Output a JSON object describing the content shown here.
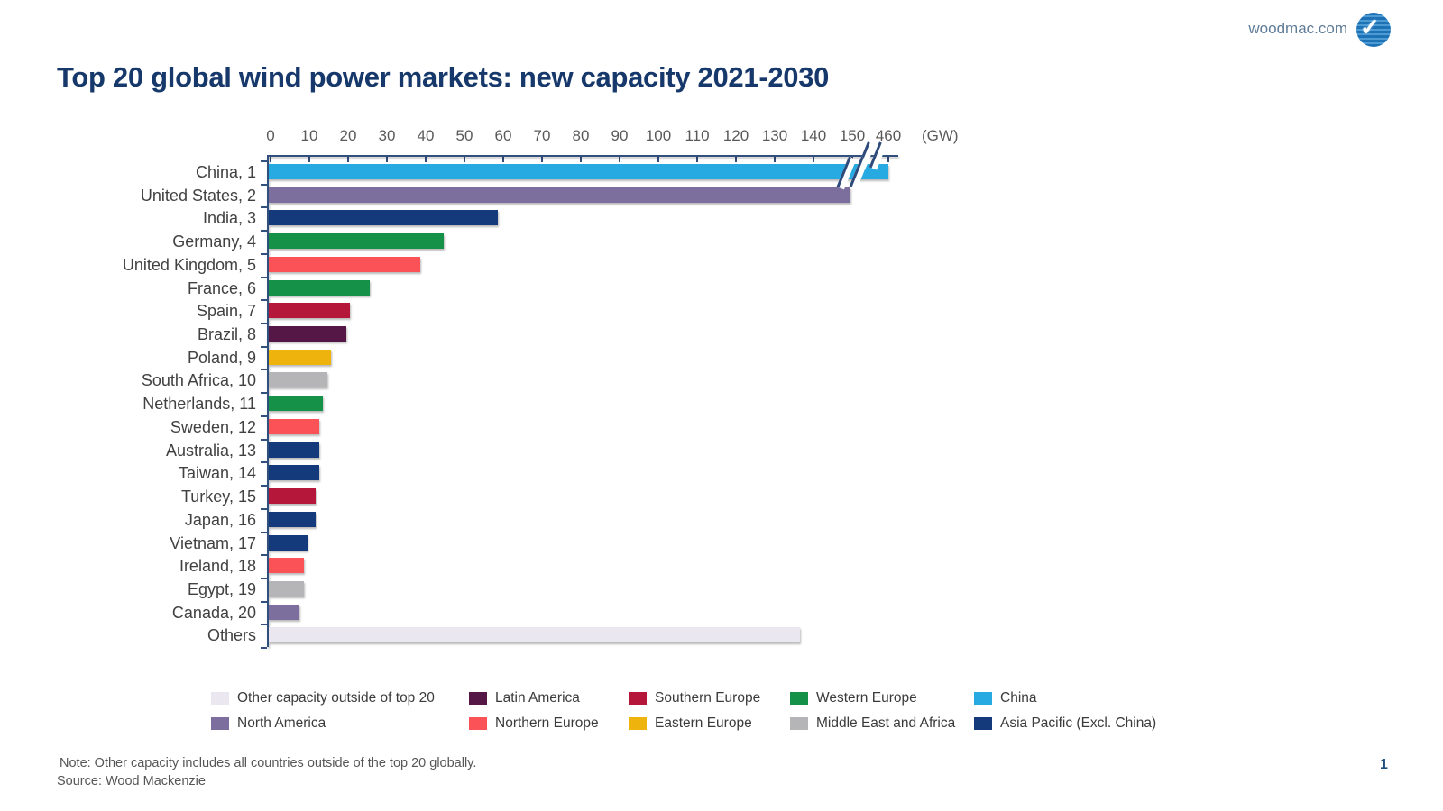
{
  "header": {
    "site_link": "woodmac.com",
    "logo": "woodmac-globe-check-logo"
  },
  "title": "Top 20 global wind power markets: new capacity 2021-2030",
  "chart_data": {
    "type": "bar",
    "orientation": "horizontal",
    "title": "Top 20 global wind power markets: new capacity 2021-2030",
    "xlabel": "(GW)",
    "ylabel": "",
    "axis": {
      "ticks": [
        0,
        10,
        20,
        30,
        40,
        50,
        60,
        70,
        80,
        90,
        100,
        110,
        120,
        130,
        140,
        150
      ],
      "break_tick": "460",
      "has_axis_break": true,
      "unit": "(GW)",
      "grid": false
    },
    "categories": [
      "China, 1",
      "United States, 2",
      "India, 3",
      "Germany, 4",
      "United Kingdom, 5",
      "France, 6",
      "Spain, 7",
      "Brazil, 8",
      "Poland, 9",
      "South Africa, 10",
      "Netherlands, 11",
      "Sweden, 12",
      "Australia, 13",
      "Taiwan, 14",
      "Turkey, 15",
      "Japan, 16",
      "Vietnam, 17",
      "Ireland, 18",
      "Egypt, 19",
      "Canada, 20",
      "Others"
    ],
    "values": [
      459,
      150,
      59,
      45,
      39,
      26,
      21,
      20,
      16,
      15,
      14,
      13,
      13,
      13,
      12,
      12,
      10,
      9,
      9,
      8,
      137
    ],
    "regions": [
      "china",
      "north_america",
      "asia_pacific",
      "western_europe",
      "northern_europe",
      "western_europe",
      "southern_europe",
      "latin_america",
      "eastern_europe",
      "middle_east_africa",
      "western_europe",
      "northern_europe",
      "asia_pacific",
      "asia_pacific",
      "southern_europe",
      "asia_pacific",
      "asia_pacific",
      "northern_europe",
      "middle_east_africa",
      "north_america",
      "other"
    ],
    "region_colors": {
      "other": "#EAE7F1",
      "latin_america": "#541746",
      "southern_europe": "#B5173A",
      "western_europe": "#169248",
      "china": "#27AAE1",
      "north_america": "#7C6F9E",
      "northern_europe": "#FB5257",
      "eastern_europe": "#EFB30D",
      "middle_east_africa": "#B5B5B8",
      "asia_pacific": "#143A7B"
    },
    "legend": {
      "position": "bottom",
      "items": [
        {
          "label": "Other capacity outside of top 20",
          "region": "other"
        },
        {
          "label": "Latin America",
          "region": "latin_america"
        },
        {
          "label": "Southern Europe",
          "region": "southern_europe"
        },
        {
          "label": "Western Europe",
          "region": "western_europe"
        },
        {
          "label": "China",
          "region": "china"
        },
        {
          "label": "North America",
          "region": "north_america"
        },
        {
          "label": "Northern Europe",
          "region": "northern_europe"
        },
        {
          "label": "Eastern Europe",
          "region": "eastern_europe"
        },
        {
          "label": "Middle East and Africa",
          "region": "middle_east_africa"
        },
        {
          "label": "Asia Pacific (Excl. China)",
          "region": "asia_pacific"
        }
      ]
    }
  },
  "footer": {
    "note": "Note: Other capacity includes all countries outside of the top 20 globally.",
    "source": "Source: Wood Mackenzie",
    "page_number": "1"
  }
}
